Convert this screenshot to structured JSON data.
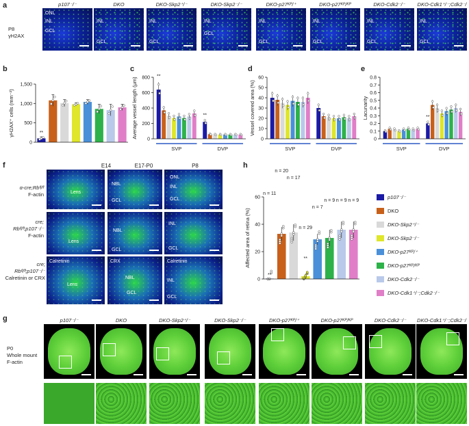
{
  "panels": {
    "a": "a",
    "b": "b",
    "c": "c",
    "d": "d",
    "e": "e",
    "f": "f",
    "g": "g",
    "h": "h"
  },
  "panel_a": {
    "row_label_1": "P8",
    "row_label_2": "γH2AX",
    "titles": [
      "p107⁻/⁻",
      "DKO",
      "DKO-Skp2⁺/⁻",
      "DKO-Skp2⁻/⁻",
      "DKO-p27ᴷᴾ/⁺",
      "DKO-p27ᴷᴾ/ᴷᴾ",
      "DKO-Cdk2⁻/⁻",
      "DKO-Cdk1⁺/⁻;Cdk2⁻/⁻"
    ],
    "layer_onl": "ONL",
    "layer_inl": "INL",
    "layer_gcl": "GCL"
  },
  "panel_b": {
    "ylabel": "γH2AX⁺ cells (mm⁻²)",
    "sig": "**"
  },
  "panel_c": {
    "ylabel": "Average vessel length (μm)",
    "sig": "**",
    "groups": [
      "SVP",
      "DVP"
    ]
  },
  "panel_d": {
    "ylabel": "Vessel covered area (%)",
    "groups": [
      "SVP",
      "DVP"
    ]
  },
  "panel_e": {
    "ylabel": "Lacunarity",
    "sig": "**",
    "groups": [
      "SVP",
      "DVP"
    ]
  },
  "panel_f": {
    "cols": [
      "E14",
      "E17-P0",
      "P8"
    ],
    "row1": [
      "α-cre;Rbᶠˡ/ᶠˡ",
      "F-actin"
    ],
    "row2": [
      "cre;",
      "Rbᶠˡ/ᶠˡ;p107⁻/⁻",
      "F-actin"
    ],
    "row3": [
      "cre;",
      "Rbᶠˡ/ᶠˡ;p107⁻/⁻",
      "Calretinin or CRX"
    ],
    "lens": "Lens",
    "nbl": "NBL",
    "gcl": "GCL",
    "onl": "ONL",
    "inl": "INL",
    "calretinin": "Calretinin",
    "crx": "CRX"
  },
  "panel_h": {
    "ylabel": "Affected area of retina (%)",
    "n_labels": [
      "n = 11",
      "n = 20",
      "n = 17",
      "n = 29",
      "n = 7",
      "n = 9",
      "n = 9",
      "n = 9"
    ],
    "sig": [
      "**",
      "**"
    ]
  },
  "legend": [
    {
      "label": "p107⁻/⁻",
      "color": "#1a1aa6"
    },
    {
      "label": "DKO",
      "color": "#c8601a"
    },
    {
      "label": "DKO-Skp2⁺/⁻",
      "color": "#d9d9d9"
    },
    {
      "label": "DKO-Skp2⁻/⁻",
      "color": "#dfe62b"
    },
    {
      "label": "DKO-p27ᴷᴾ/⁺",
      "color": "#4a90d9"
    },
    {
      "label": "DKO-p27ᴷᴾ/ᴷᴾ",
      "color": "#2db24a"
    },
    {
      "label": "DKO-Cdk2⁻/⁻",
      "color": "#b9c9ea"
    },
    {
      "label": "DKO-Cdk1⁺/⁻;Cdk2⁻/⁻",
      "color": "#e07ec8"
    }
  ],
  "panel_g": {
    "row_label": [
      "P0",
      "Whole mount",
      "F-actin"
    ],
    "titles": [
      "p107⁻/⁻",
      "DKO",
      "DKO-Skp2⁺/⁻",
      "DKO-Skp2⁻/⁻",
      "DKO-p27ᴷᴾ/⁺",
      "DKO-p27ᴷᴾ/ᴷᴾ",
      "DKO-Cdk2⁻/⁻",
      "DKO-Cdk1⁺/⁻;Cdk2⁻/⁻"
    ]
  },
  "chart_data": [
    {
      "type": "bar",
      "panel": "b",
      "categories": [
        "p107⁻/⁻",
        "DKO",
        "DKO-Skp2⁺/⁻",
        "DKO-Skp2⁻/⁻",
        "DKO-p27ᴷᴾ/⁺",
        "DKO-p27ᴷᴾ/ᴷᴾ",
        "DKO-Cdk2⁻/⁻",
        "DKO-Cdk1⁺/⁻;Cdk2⁻/⁻"
      ],
      "values": [
        100,
        1080,
        1010,
        980,
        1040,
        860,
        830,
        900
      ],
      "errors": [
        40,
        150,
        90,
        40,
        60,
        120,
        150,
        80
      ],
      "ylabel": "γH2AX⁺ cells (mm⁻²)",
      "ylim": [
        0,
        1500
      ],
      "yticks": [
        "0",
        "500",
        "1,000",
        "1,500"
      ]
    },
    {
      "type": "bar",
      "panel": "c",
      "groups": [
        "SVP",
        "DVP"
      ],
      "categories": [
        "p107⁻/⁻",
        "DKO",
        "DKO-Skp2⁺/⁻",
        "DKO-Skp2⁻/⁻",
        "DKO-p27ᴷᴾ/⁺",
        "DKO-p27ᴷᴾ/ᴷᴾ",
        "DKO-Cdk2⁻/⁻",
        "DKO-Cdk1⁺/⁻;Cdk2⁻/⁻"
      ],
      "series": [
        {
          "group": "SVP",
          "values": [
            640,
            370,
            300,
            270,
            290,
            270,
            290,
            330
          ]
        },
        {
          "group": "DVP",
          "values": [
            220,
            60,
            55,
            55,
            55,
            55,
            55,
            55
          ]
        }
      ],
      "ylabel": "Average vessel length (μm)",
      "ylim": [
        0,
        800
      ],
      "yticks": [
        "0",
        "200",
        "400",
        "600",
        "800"
      ]
    },
    {
      "type": "bar",
      "panel": "d",
      "groups": [
        "SVP",
        "DVP"
      ],
      "categories": [
        "p107⁻/⁻",
        "DKO",
        "DKO-Skp2⁺/⁻",
        "DKO-Skp2⁻/⁻",
        "DKO-p27ᴷᴾ/⁺",
        "DKO-p27ᴷᴾ/ᴷᴾ",
        "DKO-Cdk2⁻/⁻",
        "DKO-Cdk1⁺/⁻;Cdk2⁻/⁻"
      ],
      "series": [
        {
          "group": "SVP",
          "values": [
            40,
            38,
            35,
            33,
            37,
            36,
            36,
            40
          ]
        },
        {
          "group": "DVP",
          "values": [
            30,
            22,
            21,
            20,
            20,
            21,
            20,
            22
          ]
        }
      ],
      "ylabel": "Vessel covered area (%)",
      "ylim": [
        0,
        60
      ],
      "yticks": [
        "0",
        "10",
        "20",
        "30",
        "40",
        "50",
        "60"
      ]
    },
    {
      "type": "bar",
      "panel": "e",
      "groups": [
        "SVP",
        "DVP"
      ],
      "categories": [
        "p107⁻/⁻",
        "DKO",
        "DKO-Skp2⁺/⁻",
        "DKO-Skp2⁻/⁻",
        "DKO-p27ᴷᴾ/⁺",
        "DKO-p27ᴷᴾ/ᴷᴾ",
        "DKO-Cdk2⁻/⁻",
        "DKO-Cdk1⁺/⁻;Cdk2⁻/⁻"
      ],
      "series": [
        {
          "group": "SVP",
          "values": [
            0.1,
            0.13,
            0.12,
            0.1,
            0.12,
            0.13,
            0.12,
            0.13
          ]
        },
        {
          "group": "DVP",
          "values": [
            0.2,
            0.44,
            0.4,
            0.33,
            0.36,
            0.38,
            0.4,
            0.35
          ]
        }
      ],
      "ylabel": "Lacunarity",
      "ylim": [
        0,
        0.8
      ],
      "yticks": [
        "0",
        "0.1",
        "0.2",
        "0.3",
        "0.4",
        "0.5",
        "0.6",
        "0.7",
        "0.8"
      ]
    },
    {
      "type": "bar",
      "panel": "h",
      "categories": [
        "p107⁻/⁻",
        "DKO",
        "DKO-Skp2⁺/⁻",
        "DKO-Skp2⁻/⁻",
        "DKO-p27ᴷᴾ/⁺",
        "DKO-p27ᴷᴾ/ᴷᴾ",
        "DKO-Cdk2⁻/⁻",
        "DKO-Cdk1⁺/⁻;Cdk2⁻/⁻"
      ],
      "values": [
        0.2,
        33,
        34,
        2,
        29,
        30,
        36,
        36
      ],
      "errors": [
        0.2,
        5,
        6,
        2,
        4,
        6,
        6,
        6
      ],
      "ylabel": "Affected area of retina (%)",
      "ylim": [
        0,
        60
      ],
      "yticks": [
        "0",
        "20",
        "40",
        "60"
      ]
    }
  ]
}
